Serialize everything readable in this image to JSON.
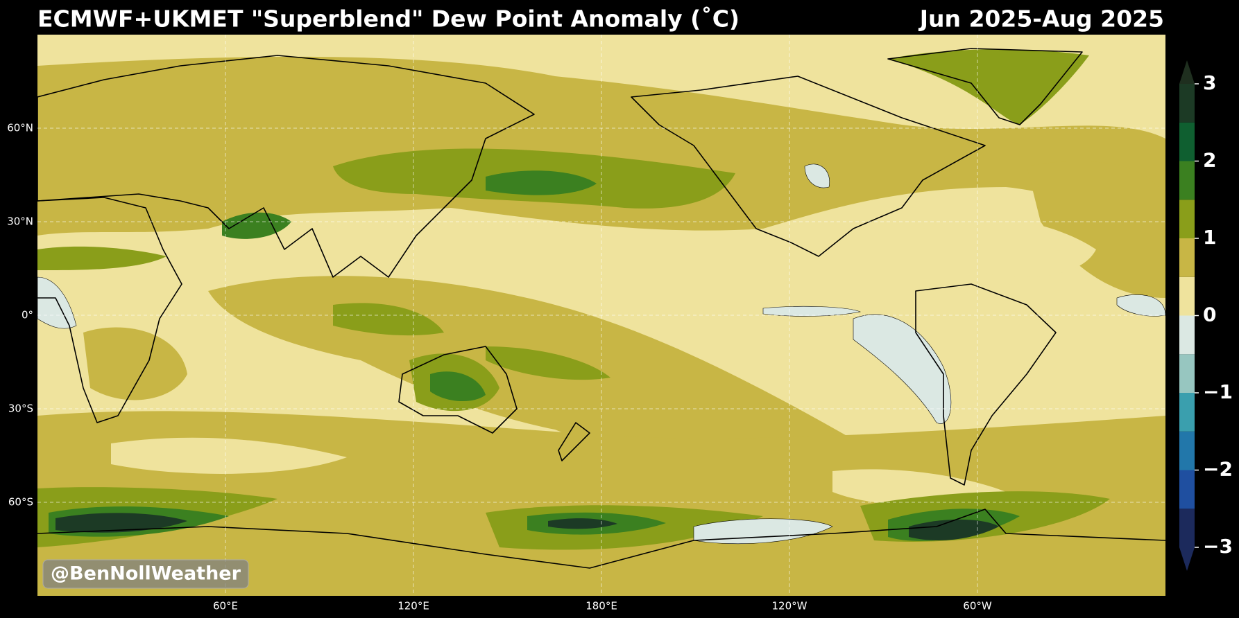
{
  "header": {
    "title": "ECMWF+UKMET \"Superblend\" Dew Point Anomaly (˚C)",
    "period": "Jun 2025-Aug 2025"
  },
  "map": {
    "xlim": [
      0,
      360
    ],
    "ylim": [
      -90,
      90
    ],
    "lat_ticks": [
      {
        "value": 60,
        "label": "60°N"
      },
      {
        "value": 30,
        "label": "30°N"
      },
      {
        "value": 0,
        "label": "0°"
      },
      {
        "value": -30,
        "label": "30°S"
      },
      {
        "value": -60,
        "label": "60°S"
      }
    ],
    "lon_ticks": [
      {
        "value": 60,
        "label": "60°E"
      },
      {
        "value": 120,
        "label": "120°E"
      },
      {
        "value": 180,
        "label": "180°E"
      },
      {
        "value": 240,
        "label": "120°W"
      },
      {
        "value": 300,
        "label": "60°W"
      }
    ],
    "grid": true
  },
  "colorbar": {
    "boundaries": [
      -3,
      -2.5,
      -2,
      -1.5,
      -1,
      -0.5,
      0,
      0.5,
      1,
      1.5,
      2,
      2.5,
      3
    ],
    "colors": [
      "#1c2a5c",
      "#1f4fa0",
      "#2277aa",
      "#3a9fae",
      "#97c6c0",
      "#dbe8e3",
      "#efe39d",
      "#c8b645",
      "#8a9e1a",
      "#3b8020",
      "#0f5f30",
      "#1c3a25"
    ],
    "under_color": "#1c2a5c",
    "over_color": "#1f2f1f",
    "ticks": [
      {
        "value": -3,
        "label": "−3"
      },
      {
        "value": -2,
        "label": "−2"
      },
      {
        "value": -1,
        "label": "−1"
      },
      0,
      1,
      2,
      3
    ]
  },
  "watermark": "@BenNollWeather"
}
